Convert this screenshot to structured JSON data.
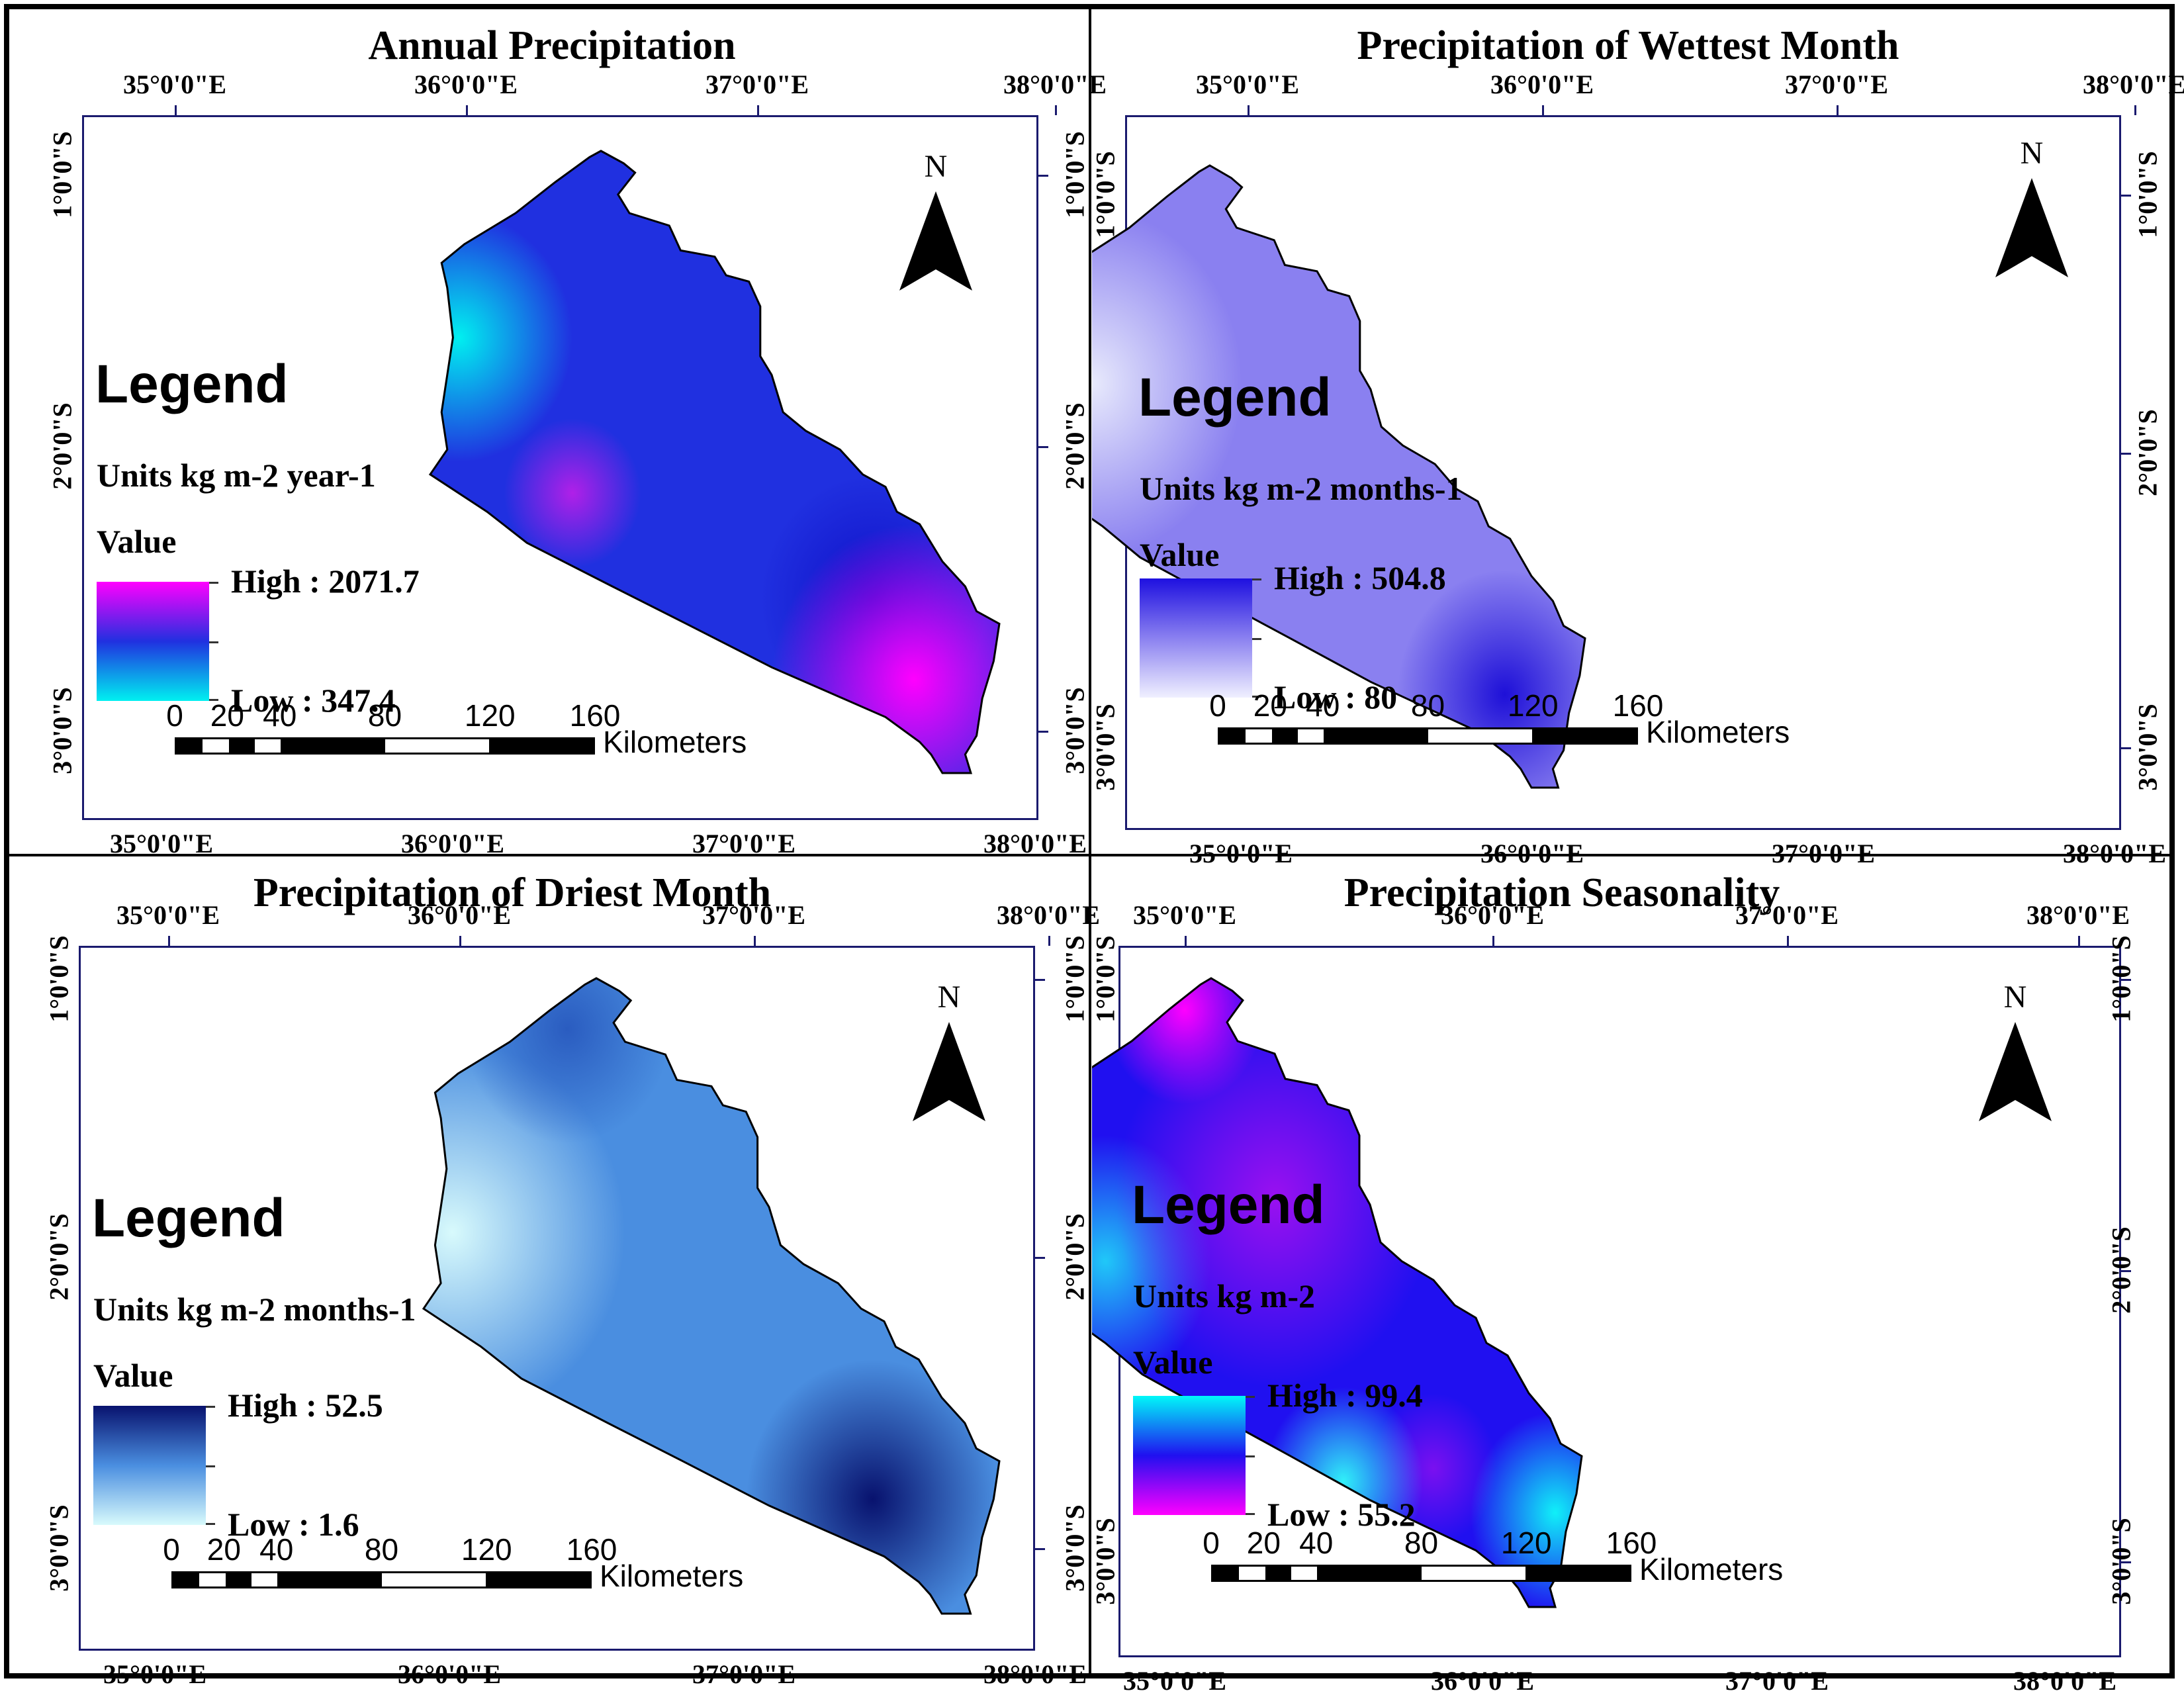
{
  "axes": {
    "lon_labels": [
      "35°0'0\"E",
      "36°0'0\"E",
      "37°0'0\"E",
      "38°0'0\"E"
    ],
    "lat_labels": [
      "1°0'0\"S",
      "2°0'0\"S",
      "3°0'0\"S"
    ]
  },
  "north_label": "N",
  "legend_heading": "Legend",
  "value_heading": "Value",
  "scale_labels": [
    "0",
    "20",
    "40",
    "80",
    "120",
    "160"
  ],
  "scale_unit": "Kilometers",
  "maps": [
    {
      "id": "annual",
      "title": "Annual Precipitation",
      "units": "Units kg m-2 year-1",
      "high_label": "High : 2071.7",
      "low_label": "Low : 347.4",
      "high": 2071.7,
      "low": 347.4,
      "colors": {
        "high": "#ff00ff",
        "mid": "#2030e0",
        "low": "#00f0f0"
      }
    },
    {
      "id": "wettest",
      "title": "Precipitation of Wettest Month",
      "units": "Units kg m-2 months-1",
      "high_label": "High : 504.8",
      "low_label": "Low : 80",
      "high": 504.8,
      "low": 80,
      "colors": {
        "high": "#1e10e0",
        "mid": "#8a80f0",
        "low": "#f0f0ff"
      }
    },
    {
      "id": "driest",
      "title": "Precipitation of Driest Month",
      "units": "Units  kg m-2 months-1",
      "high_label": "High : 52.5",
      "low_label": "Low : 1.6",
      "high": 52.5,
      "low": 1.6,
      "colors": {
        "high": "#08126e",
        "mid": "#4a8ee0",
        "low": "#d8fafc"
      }
    },
    {
      "id": "seasonality",
      "title": "Precipitation Seasonality",
      "units": "Units  kg m-2",
      "high_label": "High : 99.4",
      "low_label": "Low : 55.2",
      "high": 99.4,
      "low": 55.2,
      "colors": {
        "high": "#00f8f8",
        "mid": "#2010f0",
        "low": "#ff00ff"
      }
    }
  ]
}
